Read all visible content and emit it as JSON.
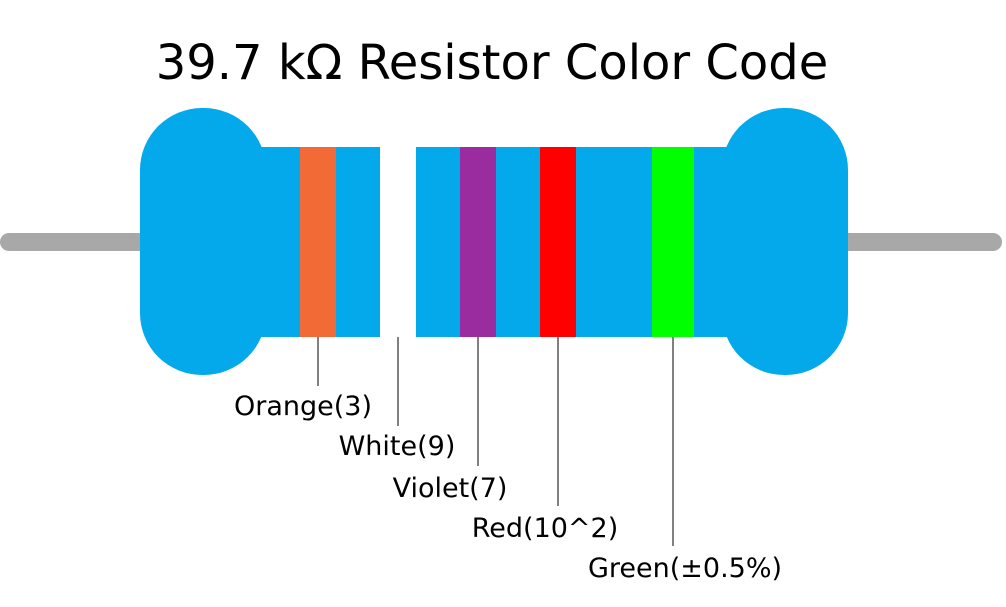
{
  "title": "39.7 kΩ Resistor Color Code",
  "bands": [
    {
      "label": "Orange(3)",
      "color": "#f26b36"
    },
    {
      "label": "White(9)",
      "color": "#ffffff"
    },
    {
      "label": "Violet(7)",
      "color": "#9b2ca0"
    },
    {
      "label": "Red(10^2)",
      "color": "#ff0000"
    },
    {
      "label": "Green(±0.5%)",
      "color": "#00ff00"
    }
  ]
}
